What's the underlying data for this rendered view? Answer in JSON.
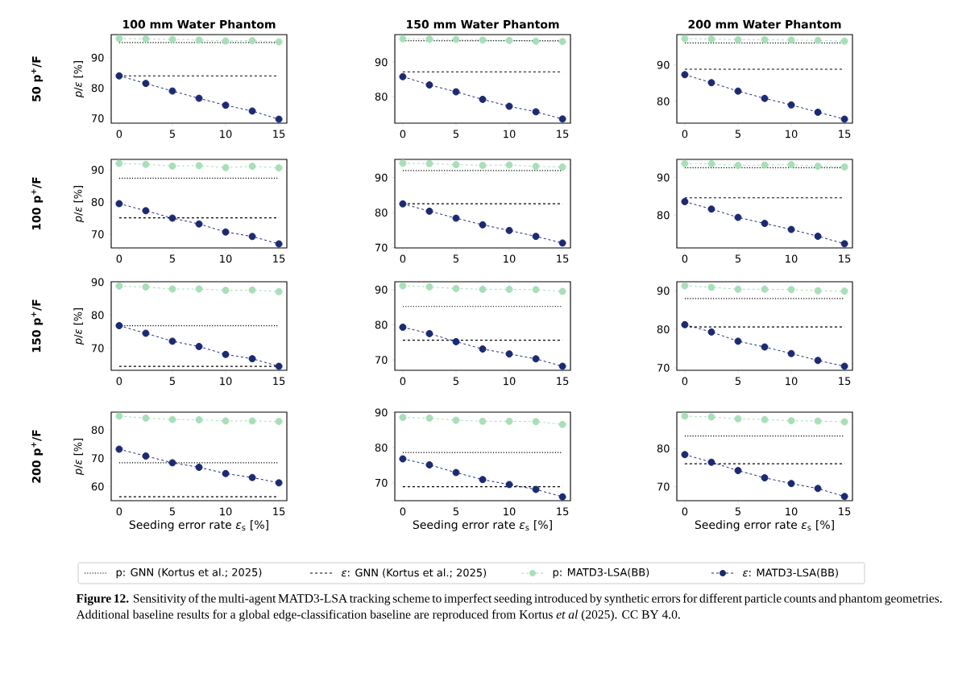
{
  "chart_data": [
    {
      "type": "line",
      "title": "100 mm Water Phantom",
      "ylabel": "*p*/*ε* [%]",
      "annotations": [
        "50 p$^{+}$/F"
      ],
      "x": [
        0,
        2.5,
        5,
        7.5,
        10,
        12.5,
        15
      ],
      "xlim": [
        -0.75,
        15.75
      ],
      "xticks": [
        0,
        5,
        10,
        15
      ],
      "ylim": [
        68.4,
        97.6
      ],
      "yticks": [
        70,
        80,
        90
      ],
      "series": [
        {
          "color": "#a8dfb9",
          "marker": "circle",
          "line_style": "dashed",
          "values": [
            96.3,
            96.2,
            96.0,
            95.8,
            95.5,
            95.6,
            95.2
          ]
        },
        {
          "color": "#1b2a72",
          "marker": "circle",
          "line_style": "dashed",
          "values": [
            84.0,
            81.5,
            79.0,
            76.6,
            74.3,
            72.4,
            69.7
          ]
        }
      ],
      "ref_lines": [
        {
          "axis": "y",
          "value": 95.0,
          "color": "#000000",
          "line_style": "dotted"
        },
        {
          "axis": "y",
          "value": 84.0,
          "color": "#000000",
          "line_style": "dashed"
        }
      ]
    },
    {
      "type": "line",
      "title": "150 mm Water Phantom",
      "x": [
        0,
        2.5,
        5,
        7.5,
        10,
        12.5,
        15
      ],
      "xlim": [
        -0.75,
        15.75
      ],
      "xticks": [
        0,
        5,
        10,
        15
      ],
      "ylim": [
        72.3,
        98.0
      ],
      "yticks": [
        80,
        90
      ],
      "series": [
        {
          "color": "#a8dfb9",
          "marker": "circle",
          "line_style": "dashed",
          "values": [
            96.8,
            96.7,
            96.6,
            96.4,
            96.3,
            96.1,
            96.0
          ]
        },
        {
          "color": "#1b2a72",
          "marker": "circle",
          "line_style": "dashed",
          "values": [
            85.8,
            83.4,
            81.4,
            79.2,
            77.2,
            75.6,
            73.5
          ]
        }
      ],
      "ref_lines": [
        {
          "axis": "y",
          "value": 96.2,
          "color": "#000000",
          "line_style": "dotted"
        },
        {
          "axis": "y",
          "value": 87.2,
          "color": "#000000",
          "line_style": "dashed"
        }
      ]
    },
    {
      "type": "line",
      "title": "200 mm Water Phantom",
      "x": [
        0,
        2.5,
        5,
        7.5,
        10,
        12.5,
        15
      ],
      "xlim": [
        -0.75,
        15.75
      ],
      "xticks": [
        0,
        5,
        10,
        15
      ],
      "ylim": [
        74.0,
        98.3
      ],
      "yticks": [
        80,
        90
      ],
      "series": [
        {
          "color": "#a8dfb9",
          "marker": "circle",
          "line_style": "dashed",
          "values": [
            97.2,
            97.1,
            96.9,
            96.9,
            96.8,
            96.7,
            96.5
          ]
        },
        {
          "color": "#1b2a72",
          "marker": "circle",
          "line_style": "dashed",
          "values": [
            87.3,
            85.1,
            82.8,
            80.8,
            79.0,
            77.0,
            75.1
          ]
        }
      ],
      "ref_lines": [
        {
          "axis": "y",
          "value": 96.0,
          "color": "#000000",
          "line_style": "dotted"
        },
        {
          "axis": "y",
          "value": 88.8,
          "color": "#000000",
          "line_style": "dashed"
        }
      ]
    },
    {
      "type": "line",
      "ylabel": "*p*/*ε* [%]",
      "annotations": [
        "100 p$^{+}$/F"
      ],
      "x": [
        0,
        2.5,
        5,
        7.5,
        10,
        12.5,
        15
      ],
      "xlim": [
        -0.75,
        15.75
      ],
      "xticks": [
        0,
        5,
        10,
        15
      ],
      "ylim": [
        65.75,
        93.25
      ],
      "yticks": [
        70,
        80,
        90
      ],
      "series": [
        {
          "color": "#a8dfb9",
          "marker": "circle",
          "line_style": "dashed",
          "values": [
            92.0,
            91.7,
            91.2,
            91.3,
            90.7,
            91.1,
            90.6
          ]
        },
        {
          "color": "#1b2a72",
          "marker": "circle",
          "line_style": "dashed",
          "values": [
            79.5,
            77.3,
            75.0,
            73.2,
            70.7,
            69.3,
            67.0
          ]
        }
      ],
      "ref_lines": [
        {
          "axis": "y",
          "value": 87.4,
          "color": "#000000",
          "line_style": "dotted"
        },
        {
          "axis": "y",
          "value": 75.1,
          "color": "#000000",
          "line_style": "dashed"
        }
      ]
    },
    {
      "type": "line",
      "x": [
        0,
        2.5,
        5,
        7.5,
        10,
        12.5,
        15
      ],
      "xlim": [
        -0.75,
        15.75
      ],
      "xticks": [
        0,
        5,
        10,
        15
      ],
      "ylim": [
        69.9,
        95.2
      ],
      "yticks": [
        70,
        80,
        90
      ],
      "series": [
        {
          "color": "#a8dfb9",
          "marker": "circle",
          "line_style": "dashed",
          "values": [
            94.1,
            94.0,
            93.7,
            93.5,
            93.6,
            93.2,
            93.0
          ]
        },
        {
          "color": "#1b2a72",
          "marker": "circle",
          "line_style": "dashed",
          "values": [
            82.5,
            80.4,
            78.4,
            76.5,
            74.9,
            73.2,
            71.3
          ]
        }
      ],
      "ref_lines": [
        {
          "axis": "y",
          "value": 92.0,
          "color": "#000000",
          "line_style": "dotted"
        },
        {
          "axis": "y",
          "value": 82.5,
          "color": "#000000",
          "line_style": "dashed"
        }
      ]
    },
    {
      "type": "line",
      "x": [
        0,
        2.5,
        5,
        7.5,
        10,
        12.5,
        15
      ],
      "xlim": [
        -0.75,
        15.75
      ],
      "xticks": [
        0,
        5,
        10,
        15
      ],
      "ylim": [
        71.3,
        94.8
      ],
      "yticks": [
        80,
        90
      ],
      "series": [
        {
          "color": "#a8dfb9",
          "marker": "circle",
          "line_style": "dashed",
          "values": [
            93.7,
            93.6,
            93.2,
            93.3,
            93.4,
            93.0,
            92.8
          ]
        },
        {
          "color": "#1b2a72",
          "marker": "circle",
          "line_style": "dashed",
          "values": [
            83.6,
            81.6,
            79.4,
            77.8,
            76.2,
            74.4,
            72.4
          ]
        }
      ],
      "ref_lines": [
        {
          "axis": "y",
          "value": 92.6,
          "color": "#000000",
          "line_style": "dotted"
        },
        {
          "axis": "y",
          "value": 84.6,
          "color": "#000000",
          "line_style": "dashed"
        }
      ]
    },
    {
      "type": "line",
      "ylabel": "*p*/*ε* [%]",
      "annotations": [
        "150 p$^{+}$/F"
      ],
      "x": [
        0,
        2.5,
        5,
        7.5,
        10,
        12.5,
        15
      ],
      "xlim": [
        -0.75,
        15.75
      ],
      "xticks": [
        0,
        5,
        10,
        15
      ],
      "ylim": [
        63.3,
        90.1
      ],
      "yticks": [
        70,
        80,
        90
      ],
      "series": [
        {
          "color": "#a8dfb9",
          "marker": "circle",
          "line_style": "dashed",
          "values": [
            88.8,
            88.5,
            87.9,
            87.9,
            87.5,
            87.6,
            87.1
          ]
        },
        {
          "color": "#1b2a72",
          "marker": "circle",
          "line_style": "dashed",
          "values": [
            76.8,
            74.5,
            72.1,
            70.5,
            68.1,
            66.8,
            64.5
          ]
        }
      ],
      "ref_lines": [
        {
          "axis": "y",
          "value": 76.8,
          "color": "#000000",
          "line_style": "dotted"
        },
        {
          "axis": "y",
          "value": 64.5,
          "color": "#000000",
          "line_style": "dashed"
        }
      ]
    },
    {
      "type": "line",
      "x": [
        0,
        2.5,
        5,
        7.5,
        10,
        12.5,
        15
      ],
      "xlim": [
        -0.75,
        15.75
      ],
      "xticks": [
        0,
        5,
        10,
        15
      ],
      "ylim": [
        67.05,
        92.25
      ],
      "yticks": [
        70,
        80,
        90
      ],
      "series": [
        {
          "color": "#a8dfb9",
          "marker": "circle",
          "line_style": "dashed",
          "values": [
            91.1,
            90.8,
            90.3,
            90.1,
            90.1,
            90.0,
            89.5
          ]
        },
        {
          "color": "#1b2a72",
          "marker": "circle",
          "line_style": "dashed",
          "values": [
            79.3,
            77.5,
            75.2,
            73.1,
            71.7,
            70.3,
            68.2
          ]
        }
      ],
      "ref_lines": [
        {
          "axis": "y",
          "value": 85.2,
          "color": "#000000",
          "line_style": "dotted"
        },
        {
          "axis": "y",
          "value": 75.6,
          "color": "#000000",
          "line_style": "dashed"
        }
      ]
    },
    {
      "type": "line",
      "x": [
        0,
        2.5,
        5,
        7.5,
        10,
        12.5,
        15
      ],
      "xlim": [
        -0.75,
        15.75
      ],
      "xticks": [
        0,
        5,
        10,
        15
      ],
      "ylim": [
        69.35,
        92.35
      ],
      "yticks": [
        70,
        80,
        90
      ],
      "series": [
        {
          "color": "#a8dfb9",
          "marker": "circle",
          "line_style": "dashed",
          "values": [
            91.3,
            90.9,
            90.4,
            90.4,
            90.3,
            90.0,
            89.9
          ]
        },
        {
          "color": "#1b2a72",
          "marker": "circle",
          "line_style": "dashed",
          "values": [
            81.2,
            79.3,
            76.9,
            75.4,
            73.7,
            71.9,
            70.4
          ]
        }
      ],
      "ref_lines": [
        {
          "axis": "y",
          "value": 88.0,
          "color": "#000000",
          "line_style": "dotted"
        },
        {
          "axis": "y",
          "value": 80.6,
          "color": "#000000",
          "line_style": "dashed"
        }
      ]
    },
    {
      "type": "line",
      "ylabel": "*p*/*ε* [%]",
      "xlabel": "Seeding error rate *ε*$_{s}$ [%]",
      "annotations": [
        "200 p$^{+}$/F"
      ],
      "x": [
        0,
        2.5,
        5,
        7.5,
        10,
        12.5,
        15
      ],
      "xlim": [
        -0.75,
        15.75
      ],
      "xticks": [
        0,
        5,
        10,
        15
      ],
      "ylim": [
        55.0,
        86.3
      ],
      "yticks": [
        60,
        70,
        80
      ],
      "series": [
        {
          "color": "#a8dfb9",
          "marker": "circle",
          "line_style": "dashed",
          "values": [
            84.9,
            84.2,
            83.7,
            83.6,
            83.2,
            83.2,
            83.0
          ]
        },
        {
          "color": "#1b2a72",
          "marker": "circle",
          "line_style": "dashed",
          "values": [
            73.2,
            70.8,
            68.4,
            66.8,
            64.6,
            63.2,
            61.3
          ]
        }
      ],
      "ref_lines": [
        {
          "axis": "y",
          "value": 68.4,
          "color": "#000000",
          "line_style": "dotted"
        },
        {
          "axis": "y",
          "value": 56.4,
          "color": "#000000",
          "line_style": "dashed"
        }
      ]
    },
    {
      "type": "line",
      "xlabel": "Seeding error rate *ε*$_{s}$ [%]",
      "x": [
        0,
        2.5,
        5,
        7.5,
        10,
        12.5,
        15
      ],
      "xlim": [
        -0.75,
        15.75
      ],
      "xticks": [
        0,
        5,
        10,
        15
      ],
      "ylim": [
        64.9,
        90.1
      ],
      "yticks": [
        70,
        80,
        90
      ],
      "series": [
        {
          "color": "#a8dfb9",
          "marker": "circle",
          "line_style": "dashed",
          "values": [
            88.6,
            88.4,
            87.8,
            87.5,
            87.5,
            87.4,
            86.6
          ]
        },
        {
          "color": "#1b2a72",
          "marker": "circle",
          "line_style": "dashed",
          "values": [
            76.8,
            75.1,
            72.9,
            70.9,
            69.5,
            68.1,
            66.0
          ]
        }
      ],
      "ref_lines": [
        {
          "axis": "y",
          "value": 78.6,
          "color": "#000000",
          "line_style": "dotted"
        },
        {
          "axis": "y",
          "value": 68.9,
          "color": "#000000",
          "line_style": "dashed"
        }
      ]
    },
    {
      "type": "line",
      "xlabel": "Seeding error rate *ε*$_{s}$ [%]",
      "legend": "bottom",
      "annotations": [
        "**Figure 12.** Sensitivity of the multi-agent MATD3-LSA tracking scheme to imperfect seeding introduced by synthetic errors for different particle counts and phantom geometries. Additional baseline results for a global edge-classification baseline are reproduced from Kortus *et al* (2025). CC BY 4.0."
      ],
      "x": [
        0,
        2.5,
        5,
        7.5,
        10,
        12.5,
        15
      ],
      "xlim": [
        -0.75,
        15.75
      ],
      "xticks": [
        0,
        5,
        10,
        15
      ],
      "ylim": [
        66.3,
        89.55
      ],
      "yticks": [
        70,
        80
      ],
      "series": [
        {
          "name": "p: MATD3-LSA(BB)",
          "color": "#a8dfb9",
          "marker": "circle",
          "line_style": "dashed",
          "values": [
            88.5,
            88.3,
            87.8,
            87.6,
            87.3,
            87.2,
            87.0
          ]
        },
        {
          "name": "*ε*: MATD3-LSA(BB)",
          "color": "#1b2a72",
          "marker": "circle",
          "line_style": "dashed",
          "values": [
            78.4,
            76.4,
            74.2,
            72.3,
            70.8,
            69.5,
            67.4
          ]
        }
      ],
      "ref_lines": [
        {
          "axis": "y",
          "value": 83.3,
          "label": "p: GNN (Kortus et al.; 2025)",
          "color": "#000000",
          "line_style": "dotted"
        },
        {
          "axis": "y",
          "value": 76.0,
          "label": "*ε*: GNN (Kortus et al.; 2025)",
          "color": "#000000",
          "line_style": "dashed"
        }
      ]
    }
  ]
}
